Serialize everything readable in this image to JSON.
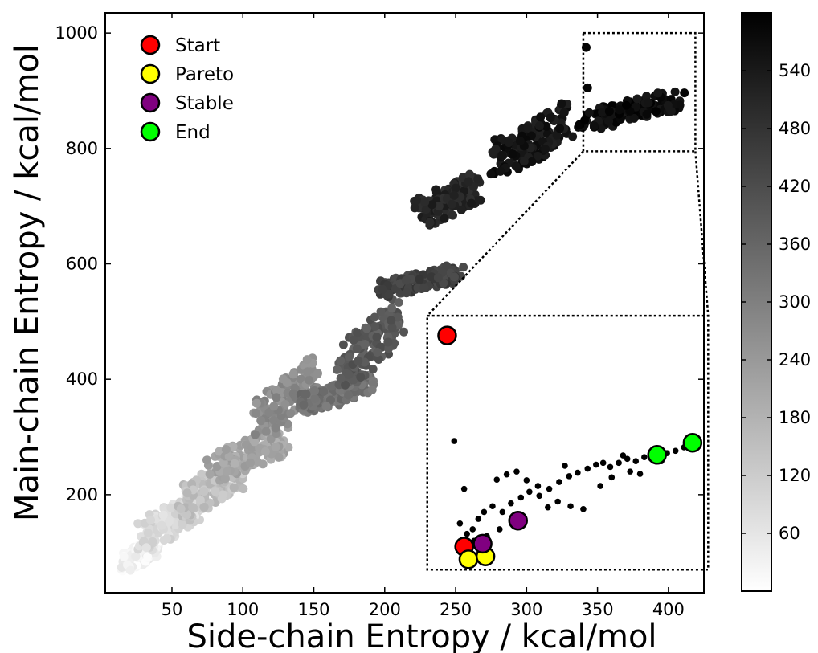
{
  "chart_data": {
    "type": "scatter",
    "xlabel": "Side-chain Entropy / kcal/mol",
    "ylabel": "Main-chain Entropy / kcal/mol",
    "xlim": [
      3,
      425
    ],
    "ylim": [
      30,
      1035
    ],
    "xticks": [
      50,
      100,
      150,
      200,
      250,
      300,
      350,
      400
    ],
    "yticks": [
      200,
      400,
      600,
      800,
      1000
    ],
    "colorbar": {
      "label": "",
      "range": [
        0,
        600
      ],
      "ticks": [
        60,
        120,
        180,
        240,
        300,
        360,
        420,
        480,
        540
      ],
      "colormap": [
        "#ffffff",
        "#000000"
      ]
    },
    "legend": {
      "placement": "top-left",
      "entries": [
        {
          "label": "Start",
          "color": "#ff0000"
        },
        {
          "label": "Pareto",
          "color": "#ffff00"
        },
        {
          "label": "Stable",
          "color": "#800080"
        },
        {
          "label": "End",
          "color": "#00ff00"
        }
      ]
    },
    "series": [
      {
        "clusters": [
          {
            "x": [
              15,
              40
            ],
            "y": [
              60,
              130
            ],
            "c": [
              0,
              60
            ]
          },
          {
            "x": [
              30,
              70
            ],
            "y": [
              100,
              210
            ],
            "c": [
              60,
              120
            ]
          },
          {
            "x": [
              55,
              100
            ],
            "y": [
              150,
              270
            ],
            "c": [
              120,
              180
            ]
          },
          {
            "x": [
              80,
              130
            ],
            "y": [
              220,
              330
            ],
            "c": [
              180,
              240
            ]
          },
          {
            "x": [
              110,
              150
            ],
            "y": [
              280,
              440
            ],
            "c": [
              240,
              300
            ]
          },
          {
            "x": [
              140,
              190
            ],
            "y": [
              340,
              410
            ],
            "c": [
              300,
              360
            ]
          },
          {
            "x": [
              170,
              210
            ],
            "y": [
              380,
              540
            ],
            "c": [
              360,
              420
            ]
          },
          {
            "x": [
              200,
              250
            ],
            "y": [
              540,
              600
            ],
            "c": [
              420,
              480
            ]
          },
          {
            "x": [
              225,
              265
            ],
            "y": [
              660,
              760
            ],
            "c": [
              480,
              540
            ]
          },
          {
            "x": [
              280,
              330
            ],
            "y": [
              750,
              880
            ],
            "c": [
              520,
              580
            ]
          },
          {
            "x": [
              340,
              405
            ],
            "y": [
              830,
              900
            ],
            "c": [
              540,
              600
            ]
          }
        ],
        "points": [
          {
            "x": 342,
            "y": 975,
            "c": 590
          },
          {
            "x": 343,
            "y": 905,
            "c": 590
          }
        ]
      }
    ],
    "inset": {
      "zoom_region": {
        "x": [
          340,
          419
        ],
        "y": [
          795,
          1000
        ]
      },
      "axes_region": {
        "x": [
          230,
          428
        ],
        "y": [
          70,
          510
        ]
      },
      "markers": [
        {
          "type": "Start",
          "x": 244,
          "y": 476
        },
        {
          "type": "Start",
          "x": 256,
          "y": 110
        },
        {
          "type": "Pareto",
          "x": 259,
          "y": 88
        },
        {
          "type": "Pareto",
          "x": 271,
          "y": 93
        },
        {
          "type": "Stable",
          "x": 269,
          "y": 115
        },
        {
          "type": "Stable",
          "x": 294,
          "y": 155
        },
        {
          "type": "End",
          "x": 392,
          "y": 269
        },
        {
          "type": "End",
          "x": 417,
          "y": 290
        }
      ],
      "points": [
        {
          "x": 249,
          "y": 293
        },
        {
          "x": 256,
          "y": 210
        },
        {
          "x": 253,
          "y": 150
        },
        {
          "x": 258,
          "y": 132
        },
        {
          "x": 262,
          "y": 140
        },
        {
          "x": 266,
          "y": 158
        },
        {
          "x": 270,
          "y": 170
        },
        {
          "x": 276,
          "y": 180
        },
        {
          "x": 283,
          "y": 170
        },
        {
          "x": 289,
          "y": 185
        },
        {
          "x": 296,
          "y": 195
        },
        {
          "x": 302,
          "y": 205
        },
        {
          "x": 309,
          "y": 198
        },
        {
          "x": 316,
          "y": 210
        },
        {
          "x": 323,
          "y": 222
        },
        {
          "x": 330,
          "y": 232
        },
        {
          "x": 336,
          "y": 238
        },
        {
          "x": 343,
          "y": 245
        },
        {
          "x": 349,
          "y": 252
        },
        {
          "x": 354,
          "y": 255
        },
        {
          "x": 359,
          "y": 248
        },
        {
          "x": 365,
          "y": 255
        },
        {
          "x": 371,
          "y": 262
        },
        {
          "x": 377,
          "y": 258
        },
        {
          "x": 383,
          "y": 265
        },
        {
          "x": 388,
          "y": 262
        },
        {
          "x": 399,
          "y": 272
        },
        {
          "x": 405,
          "y": 276
        },
        {
          "x": 411,
          "y": 282
        },
        {
          "x": 340,
          "y": 175
        },
        {
          "x": 331,
          "y": 180
        },
        {
          "x": 322,
          "y": 188
        },
        {
          "x": 315,
          "y": 178
        },
        {
          "x": 352,
          "y": 215
        },
        {
          "x": 360,
          "y": 230
        },
        {
          "x": 308,
          "y": 215
        },
        {
          "x": 300,
          "y": 225
        },
        {
          "x": 293,
          "y": 240
        },
        {
          "x": 286,
          "y": 235
        },
        {
          "x": 279,
          "y": 226
        },
        {
          "x": 373,
          "y": 240
        },
        {
          "x": 380,
          "y": 236
        },
        {
          "x": 395,
          "y": 258
        },
        {
          "x": 368,
          "y": 268
        },
        {
          "x": 327,
          "y": 250
        },
        {
          "x": 263,
          "y": 120
        },
        {
          "x": 272,
          "y": 128
        },
        {
          "x": 281,
          "y": 140
        }
      ]
    }
  }
}
